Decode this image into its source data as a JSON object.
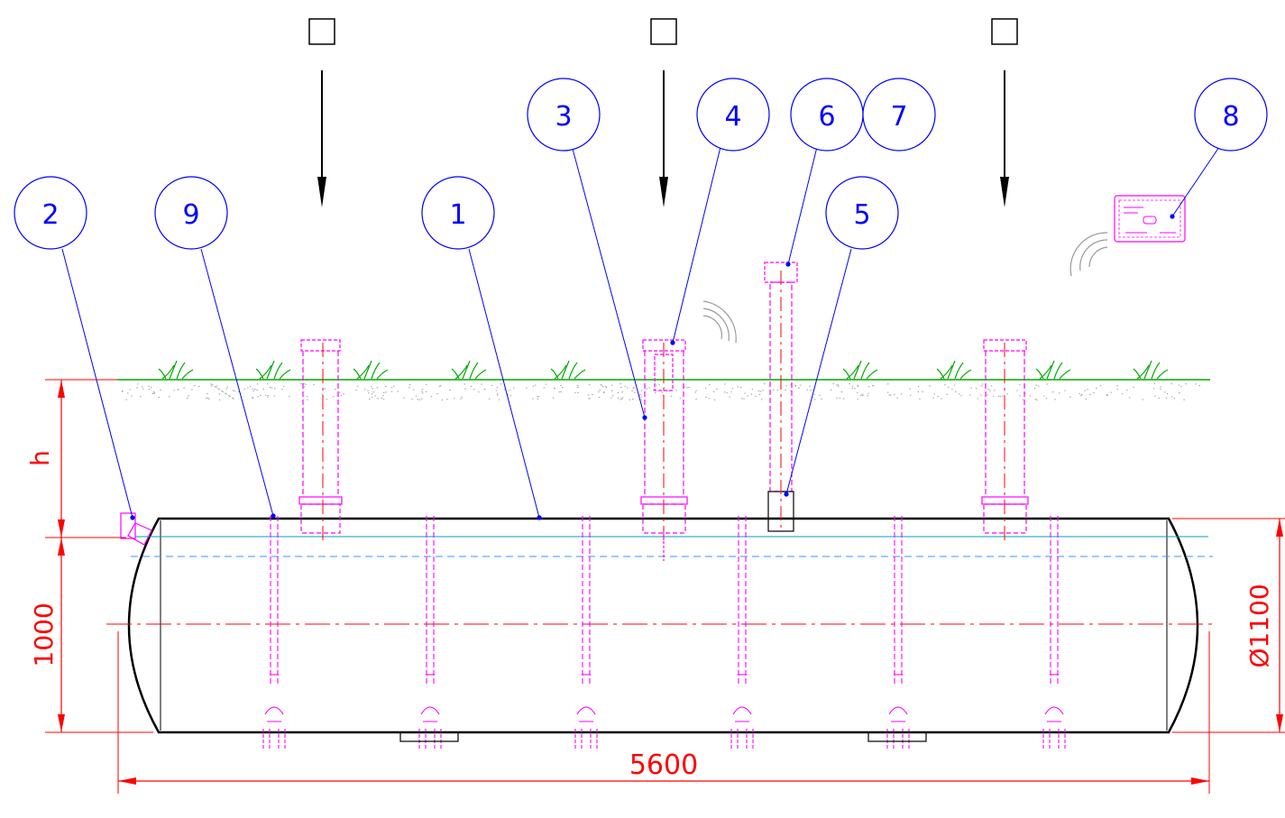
{
  "section_markers": [
    "",
    "",
    ""
  ],
  "callouts": [
    {
      "id": "callout-2",
      "label": "2"
    },
    {
      "id": "callout-9",
      "label": "9"
    },
    {
      "id": "callout-1",
      "label": "1"
    },
    {
      "id": "callout-3",
      "label": "3"
    },
    {
      "id": "callout-4",
      "label": "4"
    },
    {
      "id": "callout-6",
      "label": "6"
    },
    {
      "id": "callout-7",
      "label": "7"
    },
    {
      "id": "callout-5",
      "label": "5"
    },
    {
      "id": "callout-8",
      "label": "8"
    }
  ],
  "dimensions": {
    "cover_depth": "h",
    "height": "1000",
    "length": "5600",
    "diameter": "Ø1100"
  },
  "colors": {
    "dimension": "#ff0000",
    "callout": "#0000ff",
    "fittings": "#ff00ff",
    "ground": "#00aa00",
    "tank_outline": "#000000",
    "water_line": "#00a0c0",
    "level_line": "#3399ff",
    "wireless_signal": "#999999"
  }
}
